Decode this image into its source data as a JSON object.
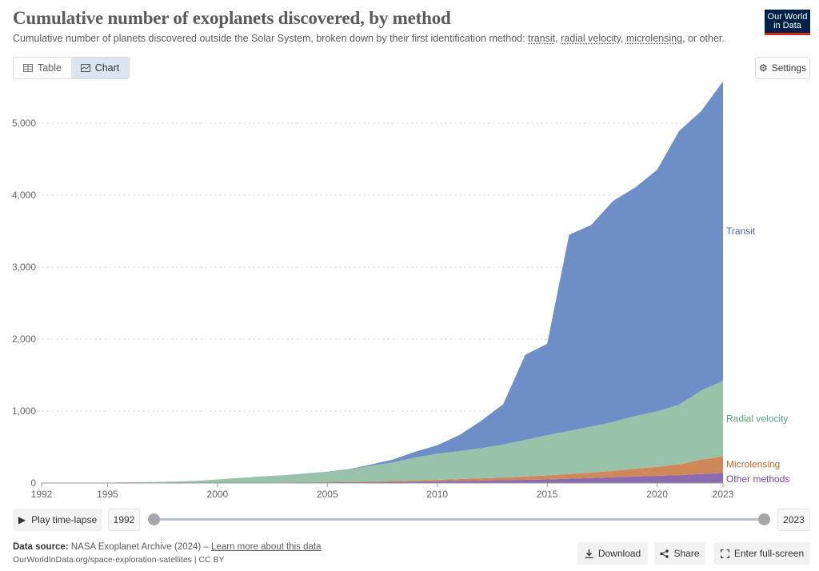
{
  "header": {
    "title": "Cumulative number of exoplanets discovered, by method",
    "subtitle_prefix": "Cumulative number of planets discovered outside the Solar System, broken down by their first identification method: ",
    "subtitle_terms": [
      "transit",
      "radial velocity",
      "microlensing"
    ],
    "subtitle_suffix": ", or other.",
    "comma": ", ",
    "logo_line1": "Our World",
    "logo_line2": "in Data"
  },
  "controls": {
    "tab_table": "Table",
    "tab_chart": "Chart",
    "settings": "Settings",
    "play": "Play time-lapse",
    "start_year": "1992",
    "end_year": "2023"
  },
  "footer": {
    "source_label": "Data source:",
    "source_text": "NASA Exoplanet Archive (2024) –",
    "learn_more": "Learn more about this data",
    "url": "OurWorldInData.org/space-exploration-satellites | CC BY",
    "download": "Download",
    "share": "Share",
    "fullscreen": "Enter full-screen"
  },
  "colors": {
    "transit": "#6d8ec6",
    "radial": "#98c2a9",
    "micro": "#cf8859",
    "other": "#8c6bb1",
    "transit_label": "#4c6a9c",
    "radial_label": "#56a07c",
    "micro_label": "#c26a2d",
    "other_label": "#6a4c9c"
  },
  "chart_data": {
    "type": "area",
    "stacked": true,
    "title": "Cumulative number of exoplanets discovered, by method",
    "xlim": [
      1992,
      2023
    ],
    "ylim": [
      0,
      5600
    ],
    "x_ticks": [
      1992,
      1995,
      2000,
      2005,
      2010,
      2015,
      2020,
      2023
    ],
    "y_ticks": [
      0,
      1000,
      2000,
      3000,
      4000,
      5000
    ],
    "y_tick_labels": [
      "0",
      "1,000",
      "2,000",
      "3,000",
      "4,000",
      "5,000"
    ],
    "x": [
      1992,
      1993,
      1994,
      1995,
      1996,
      1997,
      1998,
      1999,
      2000,
      2001,
      2002,
      2003,
      2004,
      2005,
      2006,
      2007,
      2008,
      2009,
      2010,
      2011,
      2012,
      2013,
      2014,
      2015,
      2016,
      2017,
      2018,
      2019,
      2020,
      2021,
      2022,
      2023
    ],
    "series": [
      {
        "name": "Other methods",
        "key": "other",
        "values": [
          2,
          2,
          3,
          3,
          3,
          4,
          4,
          5,
          5,
          6,
          6,
          7,
          8,
          10,
          12,
          14,
          16,
          20,
          25,
          30,
          35,
          40,
          45,
          50,
          60,
          70,
          80,
          90,
          100,
          110,
          125,
          140
        ]
      },
      {
        "name": "Microlensing",
        "key": "micro",
        "values": [
          0,
          0,
          0,
          0,
          0,
          0,
          0,
          0,
          0,
          0,
          0,
          1,
          3,
          5,
          7,
          9,
          12,
          15,
          20,
          25,
          30,
          35,
          45,
          55,
          65,
          75,
          90,
          110,
          125,
          150,
          200,
          230
        ]
      },
      {
        "name": "Radial velocity",
        "key": "radial",
        "values": [
          0,
          0,
          0,
          3,
          8,
          10,
          15,
          25,
          45,
          65,
          85,
          100,
          120,
          140,
          170,
          220,
          260,
          320,
          360,
          390,
          420,
          460,
          510,
          560,
          600,
          640,
          680,
          730,
          770,
          830,
          960,
          1050
        ]
      },
      {
        "name": "Transit",
        "key": "transit",
        "values": [
          0,
          0,
          0,
          0,
          0,
          0,
          0,
          0,
          0,
          0,
          0,
          1,
          2,
          3,
          5,
          15,
          40,
          80,
          120,
          220,
          380,
          560,
          1180,
          1270,
          2725,
          2800,
          3070,
          3175,
          3355,
          3800,
          3880,
          4160
        ]
      }
    ],
    "labels": [
      "Transit",
      "Radial velocity",
      "Microlensing",
      "Other methods"
    ]
  }
}
